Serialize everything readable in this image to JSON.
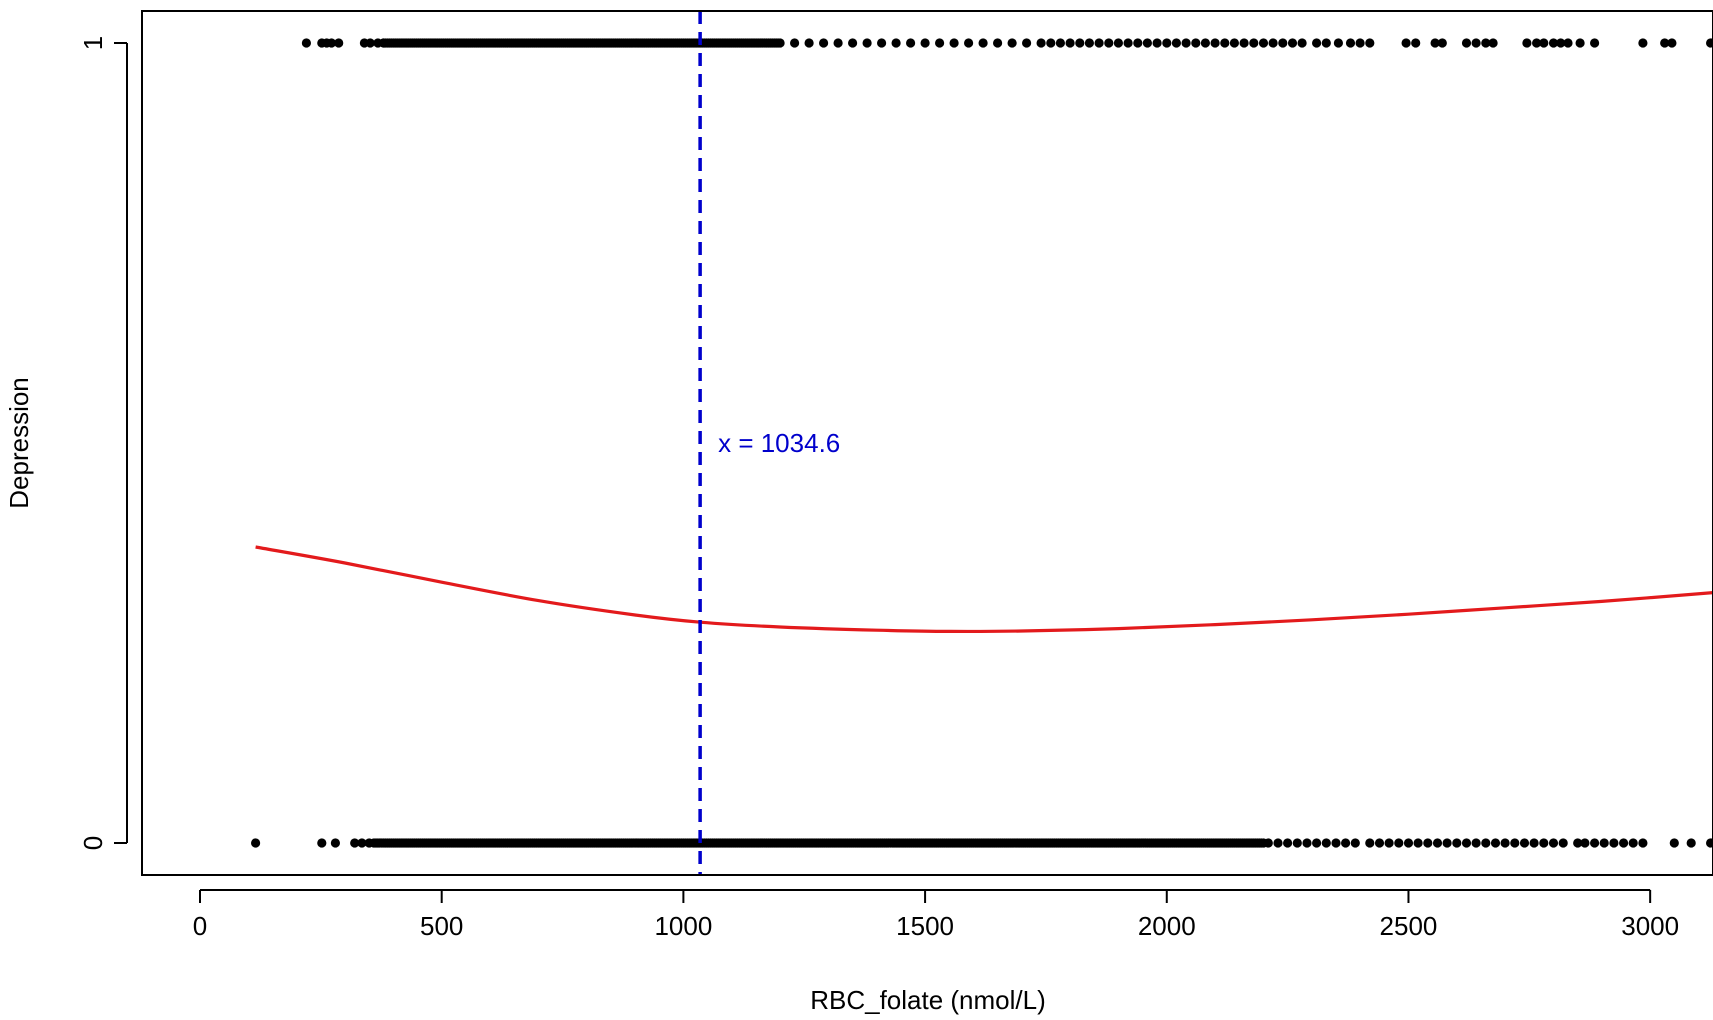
{
  "chart_data": {
    "type": "scatter",
    "title": "",
    "xlabel": "RBC_folate (nmol/L)",
    "ylabel": "Depression",
    "xlim": [
      -120,
      3130
    ],
    "ylim": [
      -0.04,
      1.04
    ],
    "xticks": [
      0,
      500,
      1000,
      1500,
      2000,
      2500,
      3000
    ],
    "yticks": [
      0,
      1
    ],
    "grid": false,
    "legend": "none",
    "colors": {
      "points": "#000000",
      "curve": "#e31a1c",
      "cutoff": "#0000cc",
      "annotation": "#0000cc"
    },
    "annotation": {
      "text": "x = 1034.6",
      "x": 1034.6,
      "y": 0.5
    },
    "cutoff_x": 1034.6,
    "curve": {
      "name": "",
      "x": [
        115,
        300,
        500,
        700,
        900,
        1034.6,
        1200,
        1400,
        1550,
        1700,
        1900,
        2100,
        2300,
        2500,
        2700,
        2900,
        3130
      ],
      "y": [
        0.37,
        0.35,
        0.326,
        0.303,
        0.285,
        0.276,
        0.27,
        0.266,
        0.2645,
        0.265,
        0.268,
        0.273,
        0.279,
        0.286,
        0.294,
        0.302,
        0.313
      ]
    },
    "points_y1": {
      "ranges": [
        [
          380,
          1200
        ]
      ],
      "x": [
        220,
        252,
        262,
        272,
        287,
        340,
        352,
        368,
        380,
        1230,
        1260,
        1290,
        1320,
        1350,
        1380,
        1410,
        1440,
        1470,
        1500,
        1530,
        1560,
        1590,
        1620,
        1650,
        1680,
        1710,
        1740,
        1760,
        1780,
        1800,
        1820,
        1840,
        1860,
        1880,
        1900,
        1920,
        1940,
        1960,
        1980,
        2000,
        2020,
        2040,
        2060,
        2080,
        2100,
        2120,
        2140,
        2160,
        2180,
        2200,
        2220,
        2240,
        2260,
        2280,
        2310,
        2330,
        2355,
        2380,
        2400,
        2420,
        2495,
        2515,
        2555,
        2570,
        2620,
        2640,
        2660,
        2675,
        2745,
        2765,
        2780,
        2800,
        2815,
        2830,
        2855,
        2885,
        2985,
        3030,
        3045,
        3125
      ]
    },
    "points_y0": {
      "ranges": [
        [
          360,
          2200
        ]
      ],
      "x": [
        115,
        252,
        280,
        320,
        335,
        350,
        2210,
        2230,
        2250,
        2270,
        2290,
        2310,
        2330,
        2350,
        2370,
        2390,
        2420,
        2440,
        2460,
        2480,
        2500,
        2520,
        2540,
        2560,
        2580,
        2600,
        2620,
        2640,
        2660,
        2680,
        2700,
        2720,
        2740,
        2760,
        2780,
        2800,
        2820,
        2850,
        2865,
        2885,
        2905,
        2925,
        2945,
        2965,
        2985,
        3050,
        3085,
        3125
      ]
    }
  }
}
